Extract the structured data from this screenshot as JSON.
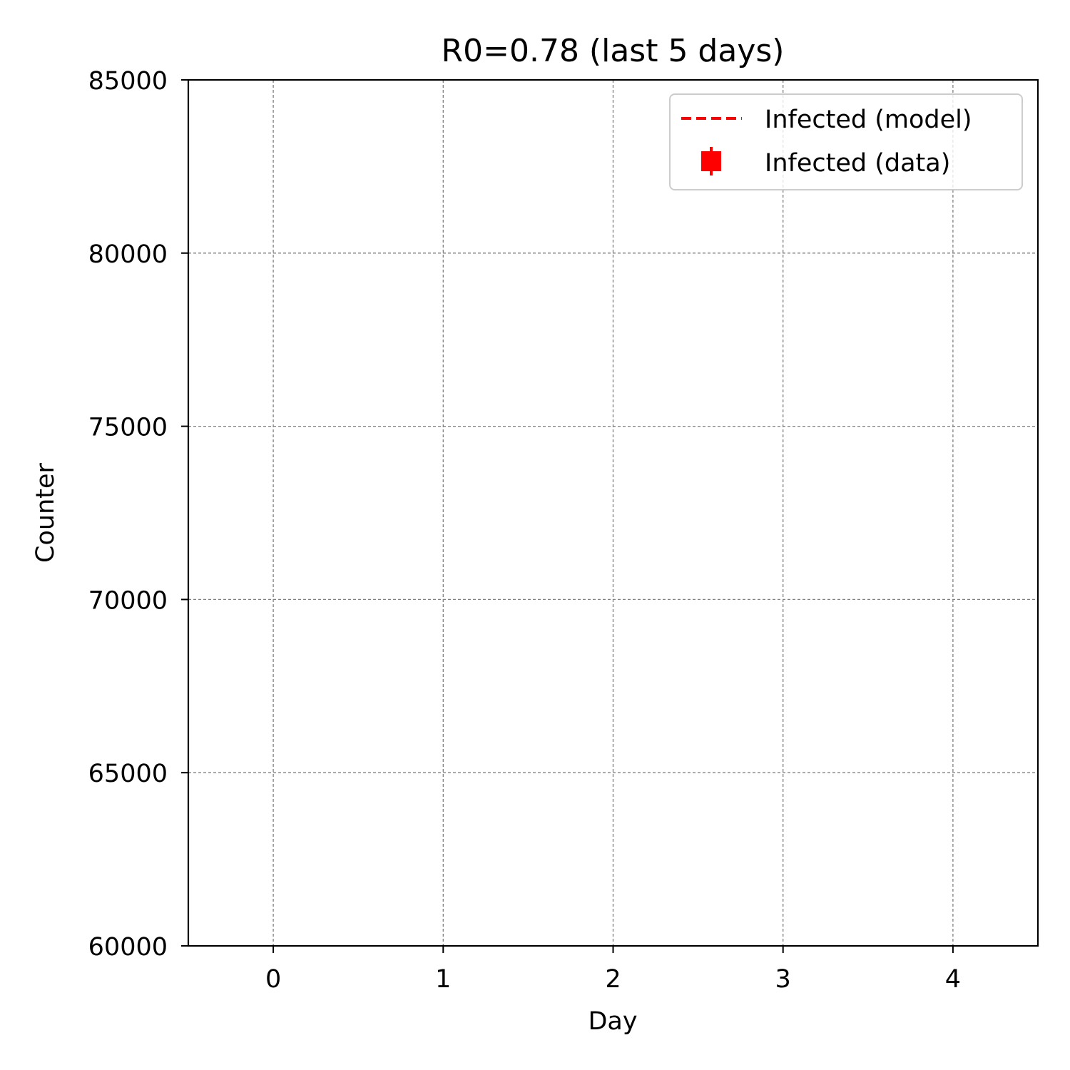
{
  "chart_data": {
    "type": "line",
    "title": "R0=0.78 (last 5 days)",
    "xlabel": "Day",
    "ylabel": "Counter",
    "xlim": [
      -0.5,
      4.5
    ],
    "ylim": [
      60000,
      85000
    ],
    "xticks": [
      0,
      1,
      2,
      3,
      4
    ],
    "xtick_labels": [
      "0",
      "1",
      "2",
      "3",
      "4"
    ],
    "yticks": [
      60000,
      65000,
      70000,
      75000,
      80000,
      85000
    ],
    "ytick_labels": [
      "60000",
      "65000",
      "70000",
      "75000",
      "80000",
      "85000"
    ],
    "grid": true,
    "legend_position": "top-right",
    "series": [
      {
        "name": "Infected (model)",
        "style": "dashed-line",
        "color": "#ff0000",
        "x": [],
        "y": []
      },
      {
        "name": "Infected (data)",
        "style": "errorbar-marker",
        "color": "#ff0000",
        "x": [],
        "y": []
      }
    ]
  }
}
